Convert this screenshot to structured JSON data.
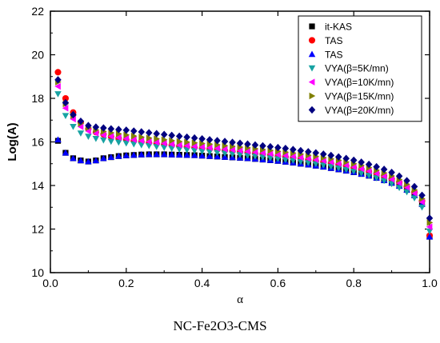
{
  "chart_data": {
    "type": "scatter",
    "title": "",
    "xlabel": "α",
    "ylabel": "Log(A)",
    "xlim": [
      0.0,
      1.0
    ],
    "ylim": [
      10,
      22
    ],
    "xticks": [
      "0.0",
      "0.2",
      "0.4",
      "0.6",
      "0.8",
      "1.0"
    ],
    "yticks": [
      "10",
      "12",
      "14",
      "16",
      "18",
      "20",
      "22"
    ],
    "grid": false,
    "legend_position": "top-right",
    "x": [
      0.02,
      0.04,
      0.06,
      0.08,
      0.1,
      0.12,
      0.14,
      0.16,
      0.18,
      0.2,
      0.22,
      0.24,
      0.26,
      0.28,
      0.3,
      0.32,
      0.34,
      0.36,
      0.38,
      0.4,
      0.42,
      0.44,
      0.46,
      0.48,
      0.5,
      0.52,
      0.54,
      0.56,
      0.58,
      0.6,
      0.62,
      0.64,
      0.66,
      0.68,
      0.7,
      0.72,
      0.74,
      0.76,
      0.78,
      0.8,
      0.82,
      0.84,
      0.86,
      0.88,
      0.9,
      0.92,
      0.94,
      0.96,
      0.98,
      1.0
    ],
    "series": [
      {
        "name": "it-KAS",
        "marker": "square",
        "color": "#000000",
        "values": [
          16.05,
          15.5,
          15.25,
          15.15,
          15.1,
          15.15,
          15.25,
          15.3,
          15.35,
          15.38,
          15.4,
          15.42,
          15.43,
          15.43,
          15.43,
          15.42,
          15.41,
          15.4,
          15.39,
          15.37,
          15.35,
          15.33,
          15.31,
          15.29,
          15.27,
          15.25,
          15.22,
          15.19,
          15.16,
          15.13,
          15.09,
          15.05,
          15.0,
          14.96,
          14.91,
          14.86,
          14.8,
          14.74,
          14.68,
          14.61,
          14.53,
          14.45,
          14.35,
          14.24,
          14.12,
          13.98,
          13.8,
          13.55,
          13.15,
          11.65
        ]
      },
      {
        "name": "TAS",
        "marker": "circle",
        "color": "#ff0000",
        "values": [
          19.2,
          18.0,
          17.35,
          16.9,
          16.6,
          16.45,
          16.35,
          16.25,
          16.17,
          16.1,
          16.05,
          16.0,
          15.96,
          15.92,
          15.88,
          15.84,
          15.8,
          15.77,
          15.74,
          15.7,
          15.67,
          15.64,
          15.6,
          15.57,
          15.53,
          15.5,
          15.46,
          15.43,
          15.39,
          15.35,
          15.31,
          15.27,
          15.22,
          15.18,
          15.13,
          15.08,
          15.02,
          14.96,
          14.9,
          14.82,
          14.74,
          14.65,
          14.55,
          14.44,
          14.3,
          14.15,
          13.95,
          13.7,
          13.3,
          11.7
        ]
      },
      {
        "name": "TAS",
        "marker": "triangle-up",
        "color": "#0000ff",
        "values": [
          16.1,
          15.5,
          15.25,
          15.15,
          15.1,
          15.15,
          15.25,
          15.3,
          15.35,
          15.38,
          15.4,
          15.42,
          15.43,
          15.43,
          15.43,
          15.42,
          15.41,
          15.4,
          15.39,
          15.37,
          15.35,
          15.33,
          15.31,
          15.29,
          15.27,
          15.25,
          15.22,
          15.19,
          15.16,
          15.13,
          15.09,
          15.05,
          15.0,
          14.96,
          14.91,
          14.86,
          14.8,
          14.74,
          14.68,
          14.61,
          14.53,
          14.45,
          14.35,
          14.24,
          14.12,
          13.98,
          13.8,
          13.55,
          13.15,
          11.65
        ]
      },
      {
        "name": "VYA(β=5K/mn)",
        "marker": "triangle-down",
        "color": "#17a2a2",
        "values": [
          18.2,
          17.2,
          16.7,
          16.4,
          16.25,
          16.15,
          16.08,
          16.02,
          15.98,
          15.94,
          15.9,
          15.86,
          15.82,
          15.78,
          15.74,
          15.7,
          15.66,
          15.63,
          15.6,
          15.57,
          15.54,
          15.51,
          15.48,
          15.44,
          15.41,
          15.37,
          15.34,
          15.3,
          15.26,
          15.22,
          15.18,
          15.14,
          15.09,
          15.04,
          14.99,
          14.93,
          14.87,
          14.8,
          14.73,
          14.65,
          14.56,
          14.46,
          14.35,
          14.22,
          14.08,
          13.9,
          13.7,
          13.42,
          13.0,
          11.9
        ]
      },
      {
        "name": "VYA(β=10K/mn)",
        "marker": "triangle-left",
        "color": "#ff00ff",
        "values": [
          18.55,
          17.55,
          17.05,
          16.7,
          16.5,
          16.4,
          16.32,
          16.26,
          16.2,
          16.15,
          16.1,
          16.06,
          16.02,
          15.98,
          15.94,
          15.9,
          15.86,
          15.83,
          15.8,
          15.77,
          15.74,
          15.71,
          15.67,
          15.64,
          15.61,
          15.57,
          15.54,
          15.5,
          15.46,
          15.42,
          15.38,
          15.34,
          15.29,
          15.24,
          15.19,
          15.14,
          15.08,
          15.01,
          14.94,
          14.86,
          14.77,
          14.67,
          14.56,
          14.43,
          14.29,
          14.12,
          13.92,
          13.65,
          13.25,
          12.1
        ]
      },
      {
        "name": "VYA(β=15K/mn)",
        "marker": "triangle-right",
        "color": "#808000",
        "values": [
          18.75,
          17.75,
          17.2,
          16.85,
          16.65,
          16.55,
          16.48,
          16.42,
          16.37,
          16.32,
          16.27,
          16.22,
          16.18,
          16.14,
          16.1,
          16.06,
          16.02,
          15.99,
          15.96,
          15.93,
          15.9,
          15.87,
          15.83,
          15.8,
          15.76,
          15.73,
          15.69,
          15.65,
          15.61,
          15.57,
          15.53,
          15.49,
          15.44,
          15.39,
          15.34,
          15.28,
          15.22,
          15.16,
          15.08,
          15.0,
          14.92,
          14.82,
          14.7,
          14.58,
          14.44,
          14.27,
          14.06,
          13.8,
          13.4,
          12.3
        ]
      },
      {
        "name": "VYA(β=20K/mn)",
        "marker": "diamond",
        "color": "#000080",
        "values": [
          18.85,
          17.8,
          17.25,
          16.95,
          16.75,
          16.68,
          16.64,
          16.6,
          16.57,
          16.54,
          16.5,
          16.46,
          16.42,
          16.38,
          16.34,
          16.3,
          16.26,
          16.22,
          16.18,
          16.14,
          16.1,
          16.06,
          16.02,
          15.98,
          15.94,
          15.9,
          15.86,
          15.82,
          15.78,
          15.74,
          15.7,
          15.65,
          15.6,
          15.55,
          15.5,
          15.44,
          15.38,
          15.31,
          15.24,
          15.16,
          15.07,
          14.97,
          14.86,
          14.74,
          14.6,
          14.43,
          14.22,
          13.95,
          13.55,
          12.5
        ]
      }
    ]
  },
  "caption": "NC-Fe2O3-CMS"
}
